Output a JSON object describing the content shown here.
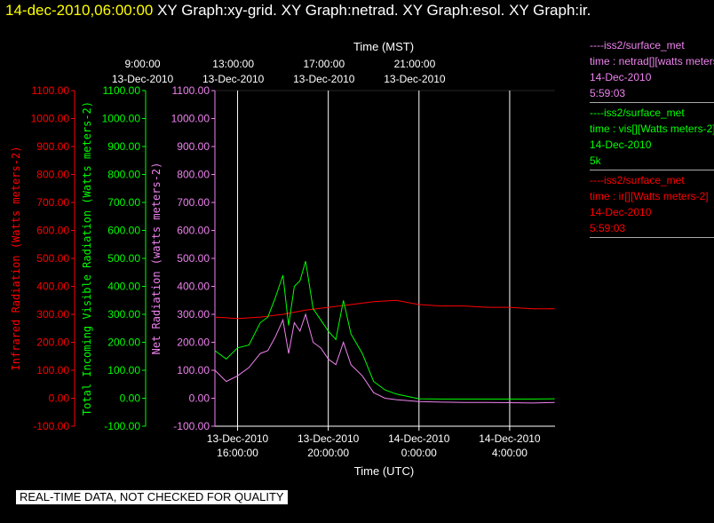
{
  "header": {
    "timestamp": "14-dec-2010,06:00:00",
    "graphs": [
      "XY Graph:xy-grid.",
      "XY Graph:netrad.",
      "XY Graph:esol.",
      "XY Graph:ir."
    ]
  },
  "colors": {
    "ir": "#ff0000",
    "vis": "#00ff00",
    "net": "#ee82ee",
    "axis_top": "#ffffff"
  },
  "chart_data": {
    "type": "line",
    "top_axis": {
      "title": "Time (MST)",
      "ticks": [
        {
          "time": "9:00:00",
          "date": "13-Dec-2010"
        },
        {
          "time": "13:00:00",
          "date": "13-Dec-2010"
        },
        {
          "time": "17:00:00",
          "date": "13-Dec-2010"
        },
        {
          "time": "21:00:00",
          "date": "13-Dec-2010"
        }
      ]
    },
    "bottom_axis": {
      "title": "Time (UTC)",
      "ticks": [
        {
          "date": "13-Dec-2010",
          "time": "16:00:00"
        },
        {
          "date": "13-Dec-2010",
          "time": "20:00:00"
        },
        {
          "date": "14-Dec-2010",
          "time": "0:00:00"
        },
        {
          "date": "14-Dec-2010",
          "time": "4:00:00"
        }
      ],
      "range_hours_utc": [
        "2010-12-13T15:00",
        "2010-12-14T06:00"
      ]
    },
    "y_axes": [
      {
        "key": "ir",
        "label": "Infrared Radiation (Watts meters-2)",
        "ylim": [
          -100,
          1100
        ]
      },
      {
        "key": "vis",
        "label": "Total Incoming Visible Radiation (Watts meters-2)",
        "ylim": [
          -100,
          1100
        ]
      },
      {
        "key": "net",
        "label": "Net Radiation (watts meters-2)",
        "ylim": [
          -100,
          1100
        ]
      }
    ],
    "y_ticks": [
      "1100.00",
      "1000.00",
      "900.00",
      "800.00",
      "700.00",
      "600.00",
      "500.00",
      "400.00",
      "300.00",
      "200.00",
      "100.00",
      "0.00",
      "-100.00"
    ],
    "x_grid_utc": [
      "2010-12-13T16:00",
      "2010-12-13T20:00",
      "2010-12-14T00:00",
      "2010-12-14T04:00"
    ],
    "series": [
      {
        "key": "ir",
        "x": [
          "2010-12-13T15:00",
          "2010-12-13T16:00",
          "2010-12-13T17:00",
          "2010-12-13T18:00",
          "2010-12-13T19:00",
          "2010-12-13T20:00",
          "2010-12-13T21:00",
          "2010-12-13T22:00",
          "2010-12-13T23:00",
          "2010-12-14T00:00",
          "2010-12-14T01:00",
          "2010-12-14T02:00",
          "2010-12-14T03:00",
          "2010-12-14T04:00",
          "2010-12-14T05:00",
          "2010-12-14T05:59"
        ],
        "y": [
          290,
          285,
          290,
          300,
          315,
          325,
          335,
          345,
          350,
          335,
          330,
          330,
          325,
          325,
          320,
          320
        ]
      },
      {
        "key": "vis",
        "x": [
          "2010-12-13T15:00",
          "2010-12-13T15:30",
          "2010-12-13T16:00",
          "2010-12-13T16:30",
          "2010-12-13T17:00",
          "2010-12-13T17:20",
          "2010-12-13T17:40",
          "2010-12-13T18:00",
          "2010-12-13T18:15",
          "2010-12-13T18:30",
          "2010-12-13T18:45",
          "2010-12-13T19:00",
          "2010-12-13T19:20",
          "2010-12-13T19:40",
          "2010-12-13T20:00",
          "2010-12-13T20:20",
          "2010-12-13T20:40",
          "2010-12-13T21:00",
          "2010-12-13T21:30",
          "2010-12-13T22:00",
          "2010-12-13T22:30",
          "2010-12-13T23:00",
          "2010-12-14T00:00",
          "2010-12-14T01:00",
          "2010-12-14T02:00",
          "2010-12-14T03:00",
          "2010-12-14T04:00",
          "2010-12-14T05:00",
          "2010-12-14T05:59"
        ],
        "y": [
          170,
          140,
          180,
          190,
          270,
          290,
          360,
          440,
          260,
          400,
          420,
          490,
          320,
          280,
          240,
          210,
          350,
          230,
          160,
          60,
          30,
          15,
          -2,
          -3,
          -3,
          -3,
          -3,
          -3,
          -2
        ]
      },
      {
        "key": "net",
        "x": [
          "2010-12-13T15:00",
          "2010-12-13T15:30",
          "2010-12-13T16:00",
          "2010-12-13T16:30",
          "2010-12-13T17:00",
          "2010-12-13T17:20",
          "2010-12-13T17:40",
          "2010-12-13T18:00",
          "2010-12-13T18:15",
          "2010-12-13T18:30",
          "2010-12-13T18:45",
          "2010-12-13T19:00",
          "2010-12-13T19:20",
          "2010-12-13T19:40",
          "2010-12-13T20:00",
          "2010-12-13T20:20",
          "2010-12-13T20:40",
          "2010-12-13T21:00",
          "2010-12-13T21:30",
          "2010-12-13T22:00",
          "2010-12-13T22:30",
          "2010-12-13T23:00",
          "2010-12-14T00:00",
          "2010-12-14T01:00",
          "2010-12-14T02:00",
          "2010-12-14T03:00",
          "2010-12-14T04:00",
          "2010-12-14T05:00",
          "2010-12-14T05:59"
        ],
        "y": [
          100,
          60,
          80,
          110,
          160,
          170,
          220,
          280,
          160,
          270,
          240,
          300,
          200,
          180,
          140,
          120,
          200,
          120,
          80,
          20,
          0,
          -5,
          -12,
          -14,
          -15,
          -15,
          -16,
          -17,
          -15
        ]
      }
    ]
  },
  "legend": [
    {
      "key": "net",
      "lines": [
        "----iss2/surface_met",
        "time : netrad[][watts meters-2]",
        "14-Dec-2010",
        "5:59:03"
      ]
    },
    {
      "key": "vis",
      "lines": [
        "----iss2/surface_met",
        "time : vis[][Watts meters-2]",
        "14-Dec-2010",
        "5k"
      ]
    },
    {
      "key": "ir",
      "lines": [
        "----iss2/surface_met",
        "time : ir[][Watts meters-2]",
        "14-Dec-2010",
        "5:59:03"
      ]
    }
  ],
  "footer": {
    "qc_notice": "REAL-TIME DATA, NOT CHECKED FOR QUALITY"
  }
}
